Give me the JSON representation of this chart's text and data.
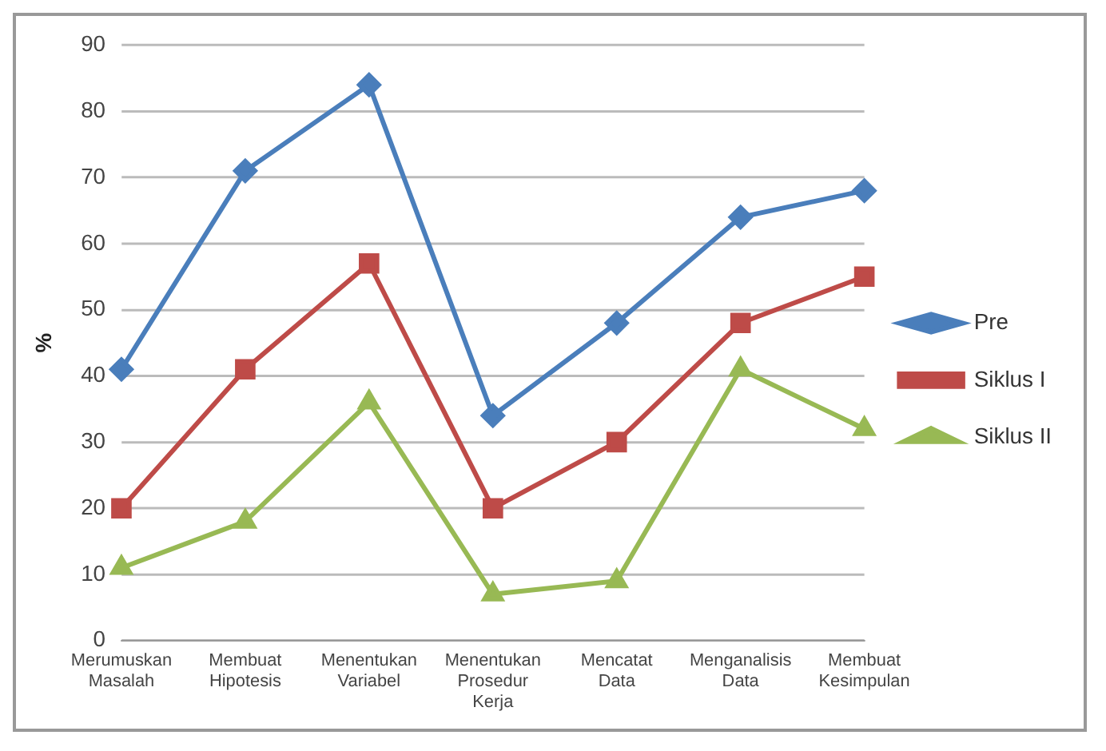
{
  "chart_data": {
    "type": "line",
    "ylabel": "%",
    "categories": [
      "Merumuskan Masalah",
      "Membuat Hipotesis",
      "Menentukan Variabel",
      "Menentukan Prosedur Kerja",
      "Mencatat Data",
      "Menganalisis Data",
      "Membuat Kesimpulan"
    ],
    "series": [
      {
        "name": "Pre",
        "color": "#4a7ebb",
        "marker": "diamond",
        "values": [
          41,
          71,
          84,
          34,
          48,
          64,
          68
        ]
      },
      {
        "name": "Siklus I",
        "color": "#be4b48",
        "marker": "square",
        "values": [
          20,
          41,
          57,
          20,
          30,
          48,
          55
        ]
      },
      {
        "name": "Siklus II",
        "color": "#98b954",
        "marker": "triangle",
        "values": [
          11,
          18,
          36,
          7,
          9,
          41,
          32
        ]
      }
    ],
    "ylim": [
      0,
      90
    ],
    "yticks": [
      0,
      10,
      20,
      30,
      40,
      50,
      60,
      70,
      80,
      90
    ],
    "grid": "y",
    "legend": "right"
  }
}
